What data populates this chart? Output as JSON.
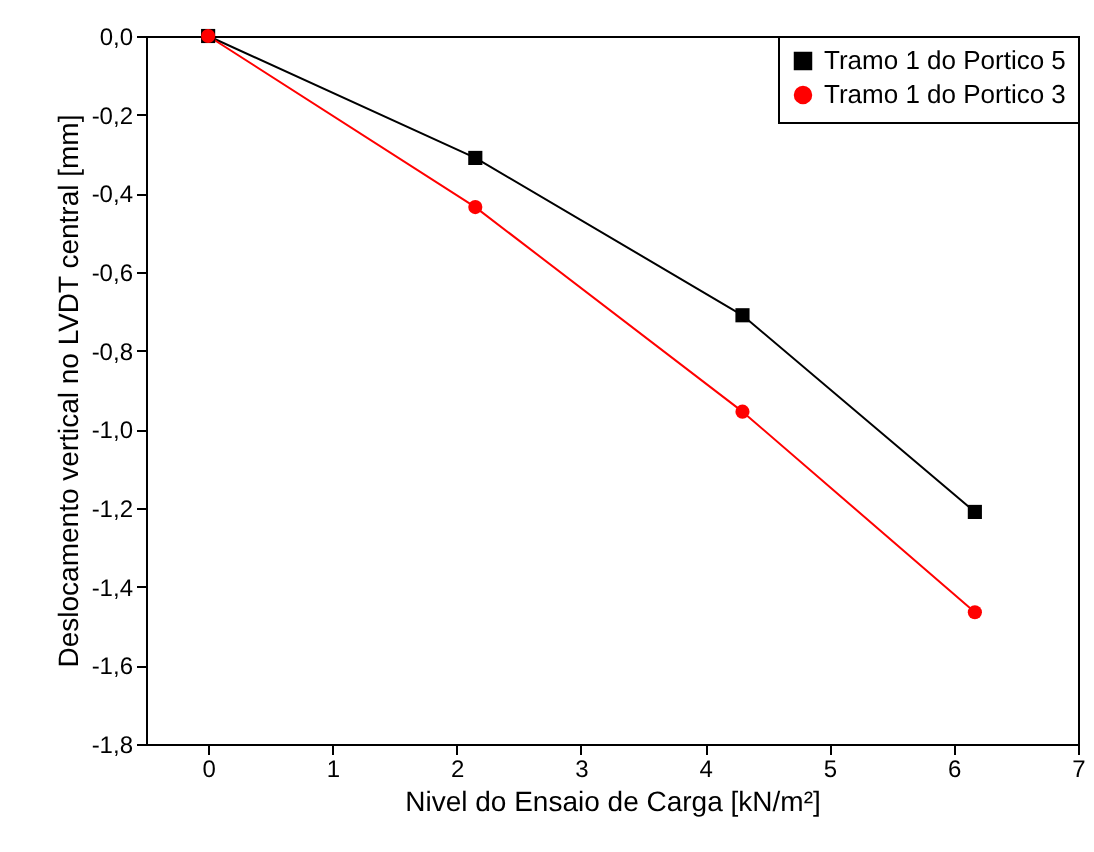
{
  "chart_data": {
    "type": "line",
    "xlabel": "Nivel do Ensaio de Carga [kN/m²]",
    "ylabel": "Deslocamento vertical no LVDT central [mm]",
    "x": [
      0,
      2.15,
      4.3,
      6.17
    ],
    "series": [
      {
        "name": "Tramo 1 do Portico 5",
        "color": "#000000",
        "marker": "square",
        "values": [
          0,
          -0.31,
          -0.71,
          -1.21
        ]
      },
      {
        "name": "Tramo 1 do Portico 3",
        "color": "#ff0000",
        "marker": "circle",
        "values": [
          0,
          -0.435,
          -0.955,
          -1.465
        ]
      }
    ],
    "xlim": [
      -0.5,
      7
    ],
    "xticks": [
      0,
      1,
      2,
      3,
      4,
      5,
      6,
      7
    ],
    "ylim": [
      -1.8,
      0
    ],
    "yticks": [
      {
        "value": -1.8,
        "label": "-1,8"
      },
      {
        "value": -1.6,
        "label": "-1,6"
      },
      {
        "value": -1.4,
        "label": "-1,4"
      },
      {
        "value": -1.2,
        "label": "-1,2"
      },
      {
        "value": -1.0,
        "label": "-1,0"
      },
      {
        "value": -0.8,
        "label": "-0,8"
      },
      {
        "value": -0.6,
        "label": "-0,6"
      },
      {
        "value": -0.4,
        "label": "-0,4"
      },
      {
        "value": -0.2,
        "label": "-0,2"
      },
      {
        "value": 0,
        "label": "0,0"
      }
    ],
    "grid": false,
    "legend": "top right",
    "line_style": "solid"
  }
}
